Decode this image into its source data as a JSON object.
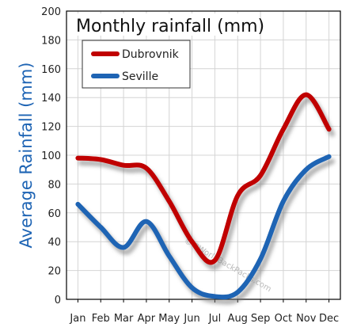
{
  "chart_data": {
    "type": "line",
    "title": "Monthly rainfall (mm)",
    "ylabel": "Average Rainfall (mm)",
    "xlabel": "",
    "categories": [
      "Jan",
      "Feb",
      "Mar",
      "Apr",
      "May",
      "Jun",
      "Jul",
      "Aug",
      "Sep",
      "Oct",
      "Nov",
      "Dec"
    ],
    "ylim": [
      0,
      200
    ],
    "yticks": [
      "0",
      "20",
      "40",
      "60",
      "80",
      "100",
      "120",
      "140",
      "160",
      "180",
      "200"
    ],
    "grid": true,
    "legend_position": "top-left",
    "series": [
      {
        "name": "Dubrovnik",
        "color": "#c00000",
        "values": [
          98,
          97,
          93,
          91,
          68,
          40,
          27,
          72,
          86,
          118,
          142,
          118
        ]
      },
      {
        "name": "Seville",
        "color": "#1e64b4",
        "values": [
          66,
          50,
          36,
          54,
          30,
          8,
          2,
          5,
          28,
          68,
          90,
          99
        ]
      }
    ],
    "watermark": "© 2WorldBackPacks.com"
  }
}
